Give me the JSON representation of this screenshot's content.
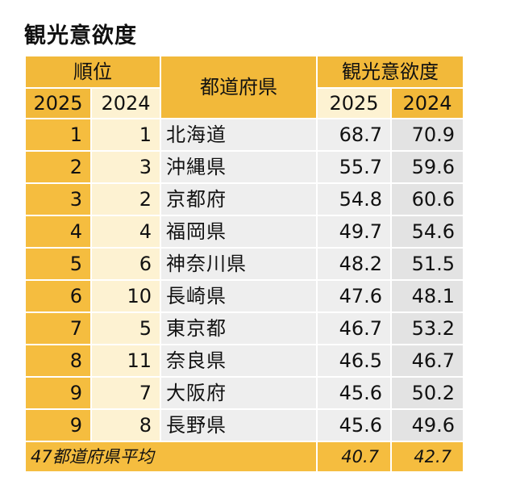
{
  "title": "観光意欲度",
  "header": {
    "rank": "順位",
    "prefecture": "都道府県",
    "score": "観光意欲度",
    "year_2025": "2025",
    "year_2024": "2024"
  },
  "chart_data": {
    "type": "table",
    "title": "観光意欲度",
    "columns": [
      "順位 2025",
      "順位 2024",
      "都道府県",
      "観光意欲度 2025",
      "観光意欲度 2024"
    ],
    "rows": [
      {
        "rank_2025": "1",
        "rank_2024": "1",
        "prefecture": "北海道",
        "score_2025": "68.7",
        "score_2024": "70.9"
      },
      {
        "rank_2025": "2",
        "rank_2024": "3",
        "prefecture": "沖縄県",
        "score_2025": "55.7",
        "score_2024": "59.6"
      },
      {
        "rank_2025": "3",
        "rank_2024": "2",
        "prefecture": "京都府",
        "score_2025": "54.8",
        "score_2024": "60.6"
      },
      {
        "rank_2025": "4",
        "rank_2024": "4",
        "prefecture": "福岡県",
        "score_2025": "49.7",
        "score_2024": "54.6"
      },
      {
        "rank_2025": "5",
        "rank_2024": "6",
        "prefecture": "神奈川県",
        "score_2025": "48.2",
        "score_2024": "51.5"
      },
      {
        "rank_2025": "6",
        "rank_2024": "10",
        "prefecture": "長崎県",
        "score_2025": "47.6",
        "score_2024": "48.1"
      },
      {
        "rank_2025": "7",
        "rank_2024": "5",
        "prefecture": "東京都",
        "score_2025": "46.7",
        "score_2024": "53.2"
      },
      {
        "rank_2025": "8",
        "rank_2024": "11",
        "prefecture": "奈良県",
        "score_2025": "46.5",
        "score_2024": "46.7"
      },
      {
        "rank_2025": "9",
        "rank_2024": "7",
        "prefecture": "大阪府",
        "score_2025": "45.6",
        "score_2024": "50.2"
      },
      {
        "rank_2025": "9",
        "rank_2024": "8",
        "prefecture": "長野県",
        "score_2025": "45.6",
        "score_2024": "49.6"
      }
    ],
    "footer": {
      "label": "47都道府県平均",
      "score_2025": "40.7",
      "score_2024": "42.7"
    }
  },
  "colors": {
    "header_bg": "#f2b93a",
    "rank_2025_bg": "#f5bd3f",
    "rank_2024_bg": "#fdf2d2",
    "body_bg": "#eeeeee",
    "score_2024_bg": "#e3e3e3"
  }
}
